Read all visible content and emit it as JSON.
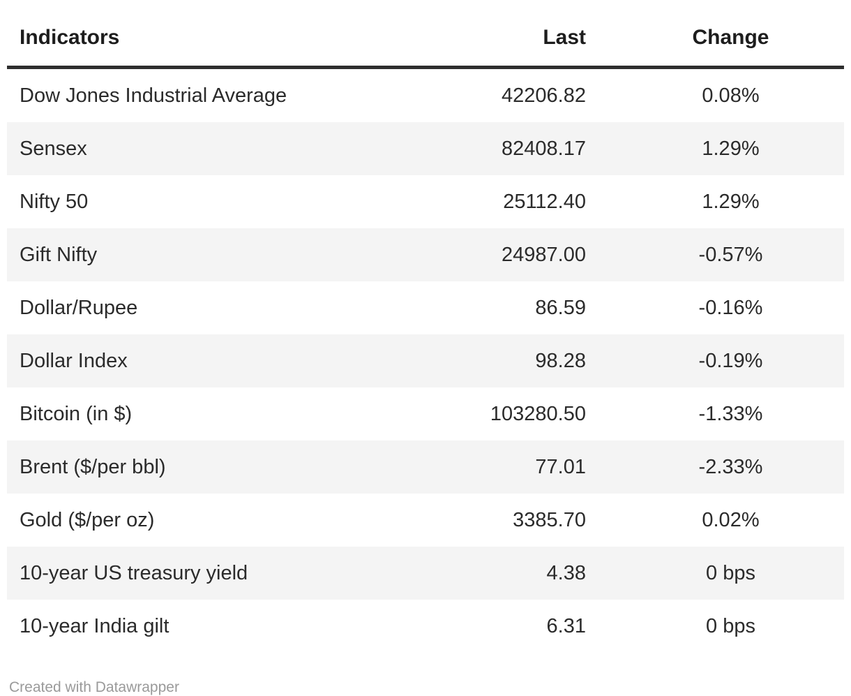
{
  "chart_data": {
    "type": "table",
    "title": "",
    "columns": [
      "Indicators",
      "Last",
      "Change"
    ],
    "column_alignment": [
      "left",
      "right",
      "center"
    ],
    "rows": [
      [
        "Dow Jones Industrial Average",
        "42206.82",
        "0.08%"
      ],
      [
        "Sensex",
        "82408.17",
        "1.29%"
      ],
      [
        "Nifty 50",
        "25112.40",
        "1.29%"
      ],
      [
        "Gift Nifty",
        "24987.00",
        "-0.57%"
      ],
      [
        "Dollar/Rupee",
        "86.59",
        "-0.16%"
      ],
      [
        "Dollar Index",
        "98.28",
        "-0.19%"
      ],
      [
        "Bitcoin (in $)",
        "103280.50",
        "-1.33%"
      ],
      [
        "Brent ($/per bbl)",
        "77.01",
        "-2.33%"
      ],
      [
        "Gold ($/per oz)",
        "3385.70",
        "0.02%"
      ],
      [
        "10-year US treasury yield",
        "4.38",
        "0 bps"
      ],
      [
        "10-year India gilt",
        "6.31",
        "0 bps"
      ]
    ],
    "striped_rows": true,
    "legend_position": "none",
    "grid": false
  },
  "footer": {
    "credit": "Created with Datawrapper"
  },
  "colors": {
    "background": "#ffffff",
    "body_text": "#2b2b2b",
    "header_text": "#1d1d1d",
    "header_rule": "#2e2e2e",
    "row_stripe": "#f4f4f4",
    "credit_text": "#9a9a9a"
  }
}
